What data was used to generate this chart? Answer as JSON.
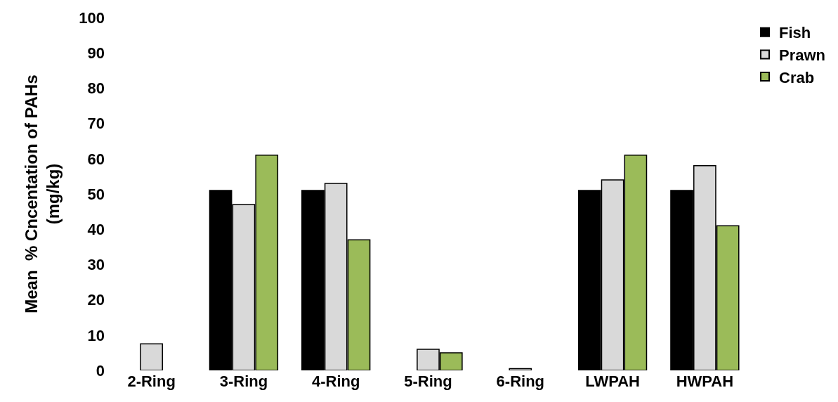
{
  "chart_data": {
    "type": "bar",
    "ylabel": "Mean  % Cncentation of PAHs\n(mg/kg)",
    "categories": [
      "2-Ring",
      "3-Ring",
      "4-Ring",
      "5-Ring",
      "6-Ring",
      "LWPAH",
      "HWPAH"
    ],
    "series": [
      {
        "name": "Fish",
        "color": "#000000",
        "values": [
          0,
          51,
          51,
          0,
          0,
          51,
          51
        ]
      },
      {
        "name": "Prawn",
        "color": "#d9d9d9",
        "values": [
          7.5,
          47,
          53,
          6,
          0.5,
          54,
          58
        ]
      },
      {
        "name": "Crab",
        "color": "#9bbb59",
        "values": [
          0,
          61,
          37,
          5,
          0,
          61,
          41
        ]
      }
    ],
    "ylim": [
      0,
      100
    ],
    "yticks": [
      0,
      10,
      20,
      30,
      40,
      50,
      60,
      70,
      80,
      90,
      100
    ],
    "grid": false,
    "legend": "top right"
  }
}
